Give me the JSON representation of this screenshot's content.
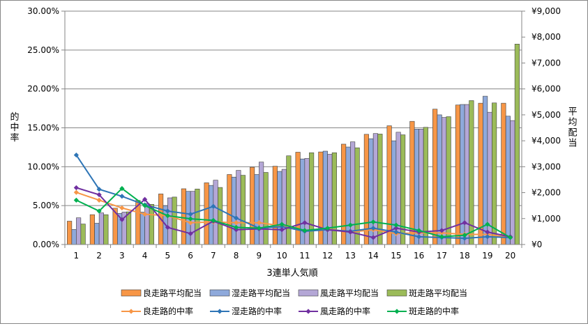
{
  "chart_data": {
    "type": "bar+line",
    "xlabel": "3連単人気順",
    "ylabel_left": "的中率",
    "ylabel_right": "平均配当",
    "categories": [
      "1",
      "2",
      "3",
      "4",
      "5",
      "6",
      "7",
      "8",
      "9",
      "10",
      "11",
      "12",
      "13",
      "14",
      "15",
      "16",
      "17",
      "18",
      "19",
      "20"
    ],
    "left_axis": {
      "min": 0,
      "max": 30,
      "step": 5,
      "tick_labels": [
        "0.00%",
        "5.00%",
        "10.00%",
        "15.00%",
        "20.00%",
        "25.00%",
        "30.00%"
      ]
    },
    "right_axis": {
      "min": 0,
      "max": 9000,
      "step": 1000,
      "tick_labels": [
        "¥0",
        "¥1,000",
        "¥2,000",
        "¥3,000",
        "¥4,000",
        "¥5,000",
        "¥6,000",
        "¥7,000",
        "¥8,000",
        "¥9,000"
      ]
    },
    "grid": "horizontal",
    "legend_position": "bottom",
    "bar_series": [
      {
        "name": "良走路平均配当",
        "color": "#f79646",
        "values": [
          900,
          1150,
          1400,
          1700,
          1950,
          2150,
          2380,
          2700,
          2980,
          3020,
          3560,
          3570,
          3870,
          4250,
          4580,
          4750,
          5220,
          5380,
          5450,
          5450
        ]
      },
      {
        "name": "湿走路平均配当",
        "color": "#8ea9db",
        "values": [
          580,
          820,
          1200,
          1250,
          1500,
          2050,
          2280,
          2600,
          2700,
          2820,
          3300,
          3600,
          3760,
          4080,
          4000,
          4450,
          5000,
          5400,
          5720,
          4950
        ]
      },
      {
        "name": "風走路平均配当",
        "color": "#b4a7d6",
        "values": [
          1030,
          1220,
          1250,
          1580,
          1800,
          2050,
          2480,
          2860,
          3180,
          2900,
          3320,
          3480,
          3960,
          4280,
          4330,
          4450,
          4900,
          5400,
          5100,
          4780
        ]
      },
      {
        "name": "斑走路平均配当",
        "color": "#9bbb59",
        "values": [
          790,
          1150,
          1260,
          1550,
          1830,
          2140,
          2200,
          2670,
          2780,
          3420,
          3540,
          3540,
          3730,
          4260,
          4230,
          4520,
          4930,
          5550,
          5460,
          7730
        ]
      }
    ],
    "line_series": [
      {
        "name": "良走路的中率",
        "color": "#f79646",
        "values": [
          6.7,
          5.7,
          4.7,
          3.9,
          3.7,
          2.8,
          2.9,
          2.8,
          2.8,
          2.4,
          1.7,
          2.0,
          1.6,
          1.9,
          1.4,
          1.5,
          1.5,
          1.3,
          1.3,
          0.9
        ]
      },
      {
        "name": "湿走路的中率",
        "color": "#2e75b6",
        "values": [
          11.5,
          7.1,
          6.2,
          5.1,
          4.3,
          3.9,
          4.9,
          3.4,
          2.1,
          2.3,
          1.7,
          1.9,
          1.7,
          2.1,
          1.6,
          1.0,
          0.9,
          0.8,
          1.0,
          0.9
        ]
      },
      {
        "name": "風走路的中率",
        "color": "#7030a0",
        "values": [
          7.3,
          6.4,
          3.2,
          5.8,
          2.2,
          1.4,
          3.0,
          1.9,
          2.0,
          1.9,
          2.8,
          1.9,
          1.6,
          0.9,
          2.1,
          1.6,
          1.8,
          2.8,
          1.6,
          1.0
        ]
      },
      {
        "name": "斑走路的中率",
        "color": "#00b050",
        "values": [
          5.7,
          4.3,
          7.2,
          5.0,
          3.7,
          3.3,
          3.1,
          2.2,
          2.1,
          2.6,
          1.8,
          2.1,
          2.5,
          2.9,
          2.5,
          1.8,
          1.0,
          1.2,
          2.6,
          0.9
        ]
      }
    ]
  }
}
